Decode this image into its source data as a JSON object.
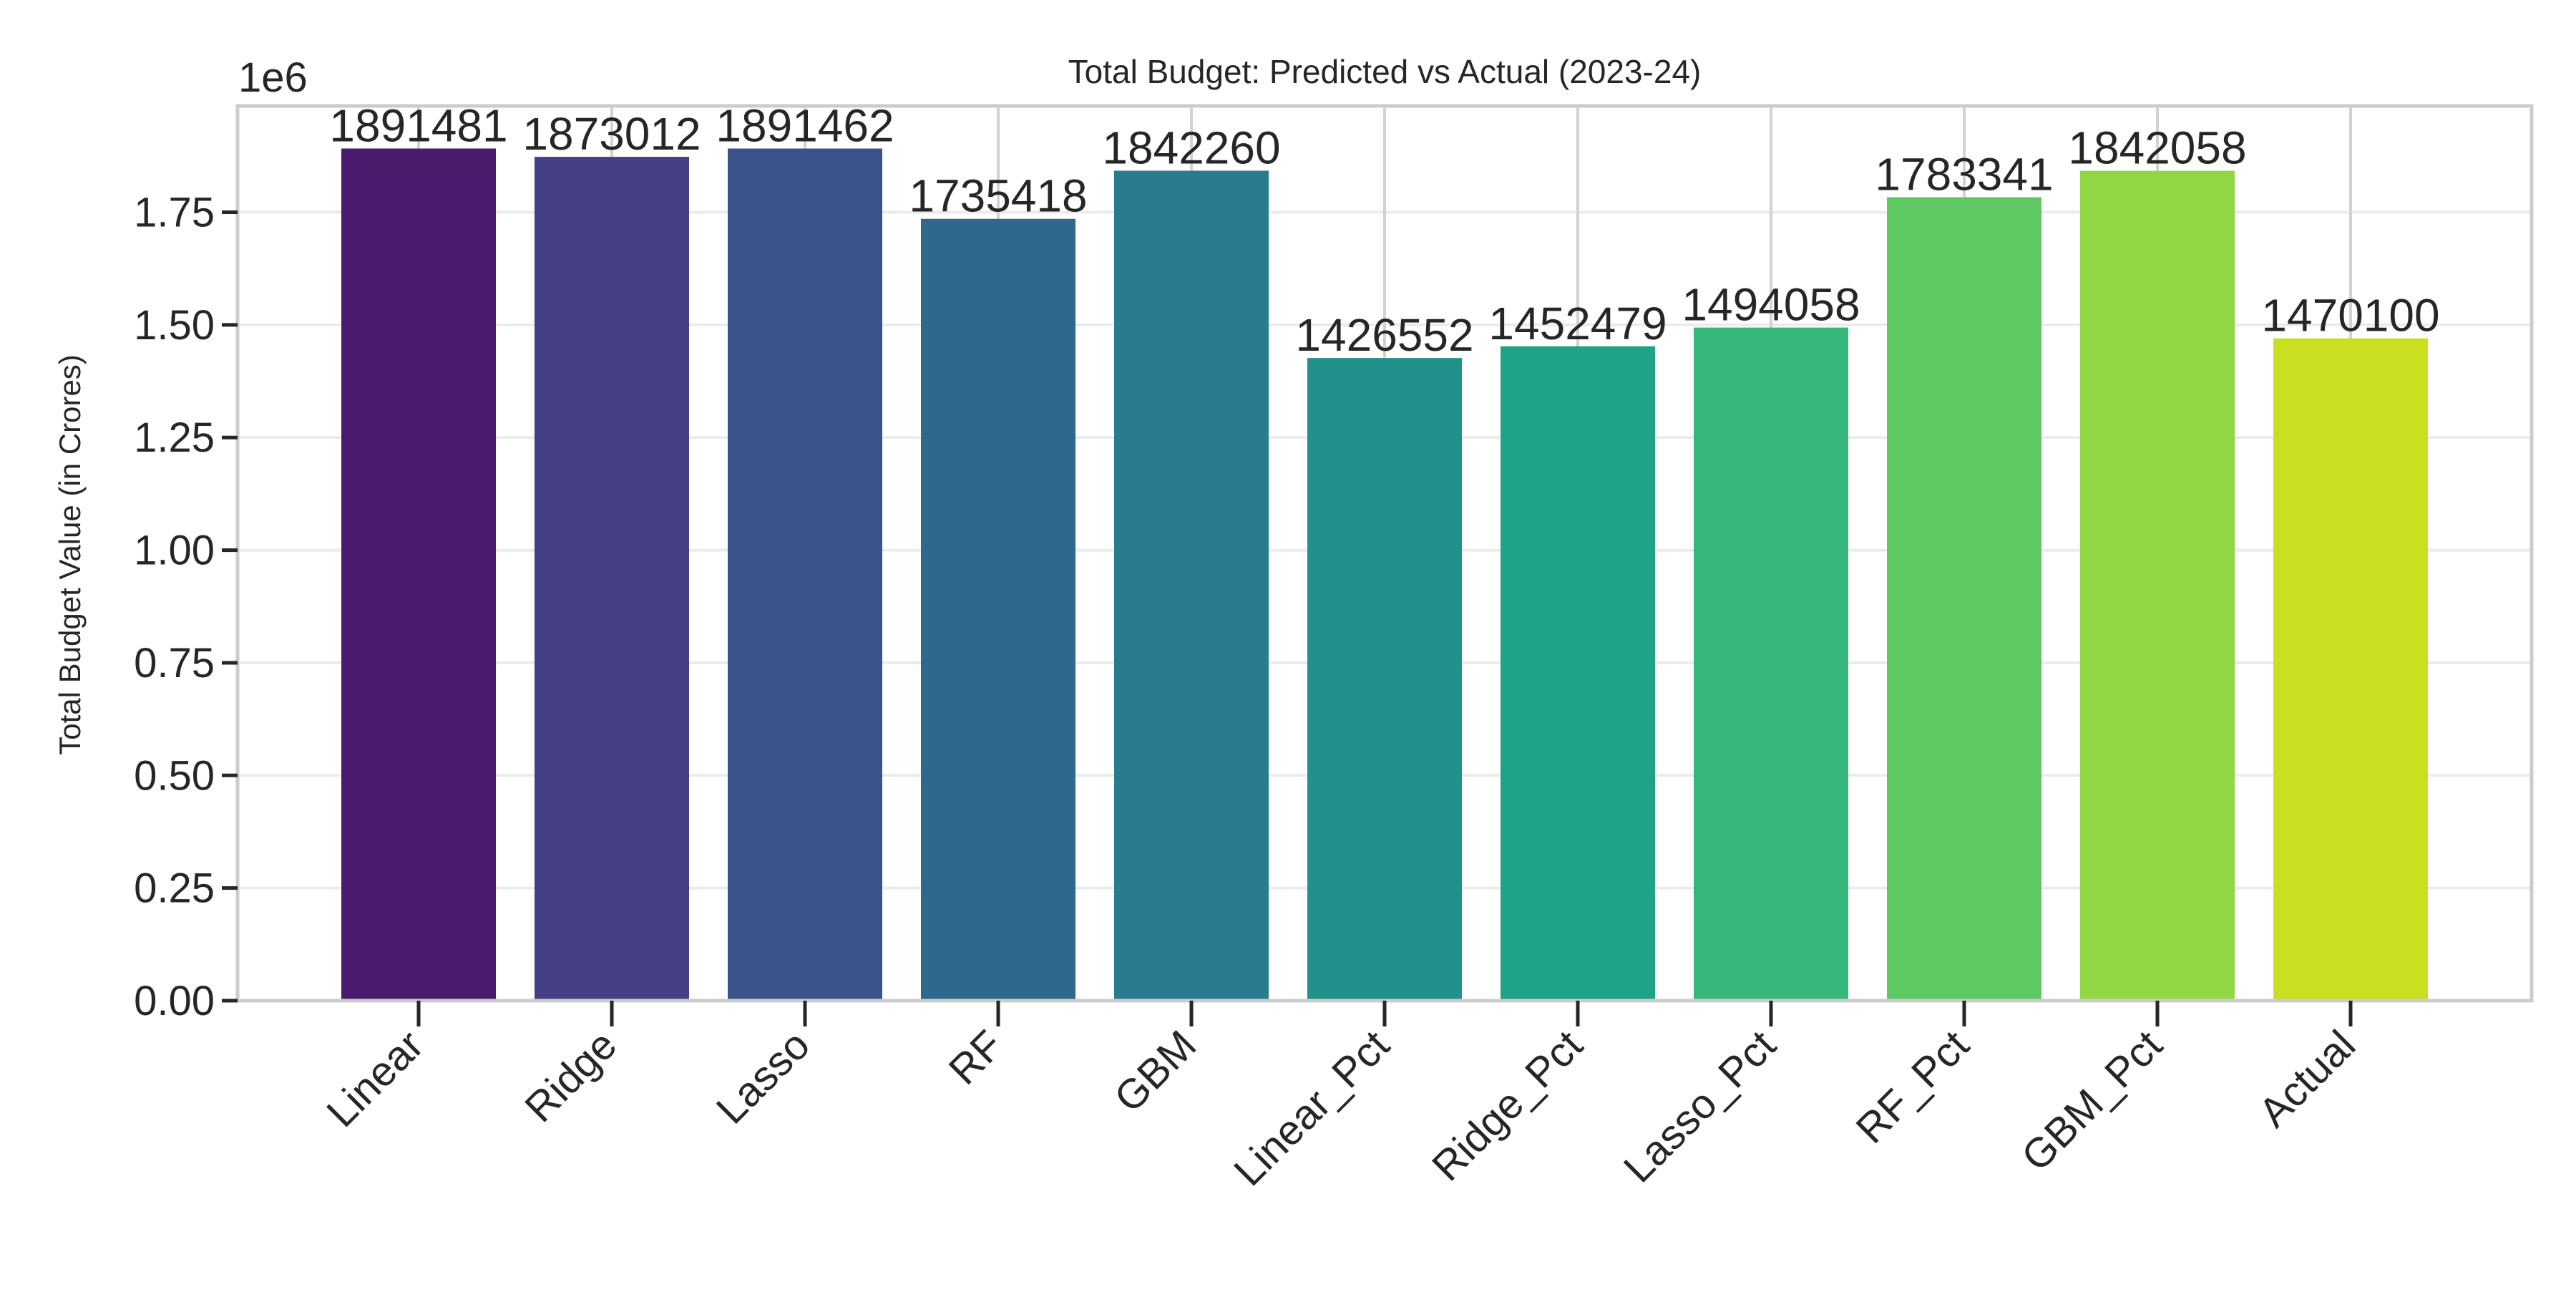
{
  "chart_data": {
    "type": "bar",
    "title": "Total Budget: Predicted vs Actual (2023-24)",
    "xlabel": "",
    "ylabel": "Total Budget Value (in Crores)",
    "y_offset_label": "1e6",
    "y_scale": 1000000,
    "ylim": [
      0,
      1986000
    ],
    "yticks": [
      0,
      250000,
      500000,
      750000,
      1000000,
      1250000,
      1500000,
      1750000
    ],
    "ytick_labels": [
      "0.00",
      "0.25",
      "0.50",
      "0.75",
      "1.00",
      "1.25",
      "1.50",
      "1.75"
    ],
    "grid": true,
    "legend": "none",
    "categories": [
      "Linear",
      "Ridge",
      "Lasso",
      "RF",
      "GBM",
      "Linear_Pct",
      "Ridge_Pct",
      "Lasso_Pct",
      "RF_Pct",
      "GBM_Pct",
      "Actual"
    ],
    "values": [
      1891481,
      1873012,
      1891462,
      1735418,
      1842260,
      1426552,
      1452479,
      1494058,
      1783341,
      1842058,
      1470100
    ],
    "data_labels": [
      "1891481",
      "1873012",
      "1891462",
      "1735418",
      "1842260",
      "1426552",
      "1452479",
      "1494058",
      "1783341",
      "1842058",
      "1470100"
    ],
    "colors": [
      "#481b6d",
      "#433e85",
      "#3a538b",
      "#30678d",
      "#287c8e",
      "#21918c",
      "#1fa386",
      "#35b779",
      "#5ec962",
      "#90d743",
      "#c8e020"
    ]
  }
}
